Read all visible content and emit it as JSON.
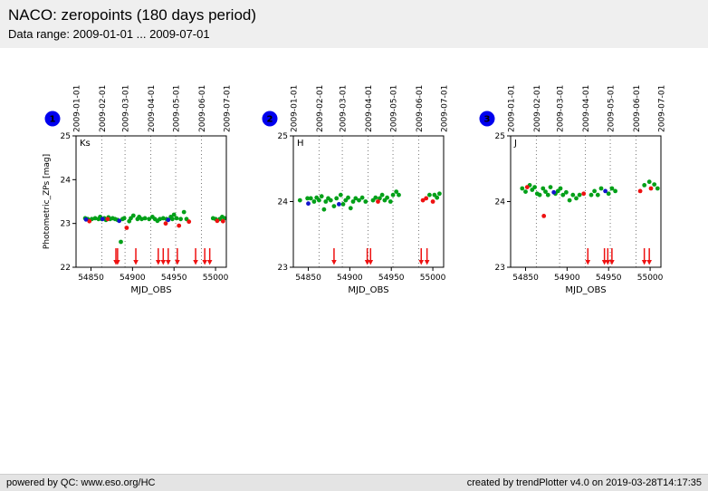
{
  "header": {
    "title": "NACO: zeropoints (180 days period)",
    "subtitle": "Data range: 2009-01-01 ... 2009-07-01"
  },
  "footer": {
    "left": "powered by QC: www.eso.org/HC",
    "right": "created by trendPlotter v4.0 on 2019-03-28T14:17:35"
  },
  "colors": {
    "green": "#00a018",
    "red": "#ee1111",
    "blue": "#1414cc",
    "badge": "#0000ee",
    "grid": "#777777",
    "axis": "#000000"
  },
  "chart_data": [
    {
      "type": "scatter",
      "badge": "1",
      "label": "Ks",
      "xlabel": "MJD_OBS",
      "ylabel": "Photometric_ZPs [mag]",
      "xlim": [
        54832,
        55013
      ],
      "ylim": [
        22,
        25
      ],
      "xticks": [
        54850,
        54900,
        54950,
        55000
      ],
      "yticks": [
        22,
        23,
        24,
        25
      ],
      "months": {
        "labels": [
          "2009-01-01",
          "2009-02-01",
          "2009-03-01",
          "2009-04-01",
          "2009-05-01",
          "2009-06-01",
          "2009-07-01"
        ],
        "mjd": [
          54832,
          54863,
          54891,
          54922,
          54952,
          54983,
          55013
        ]
      },
      "series": [
        {
          "name": "nominal",
          "color": "green",
          "points": [
            [
              54843,
              23.12
            ],
            [
              54846,
              23.1
            ],
            [
              54851,
              23.1
            ],
            [
              54855,
              23.12
            ],
            [
              54859,
              23.1
            ],
            [
              54861,
              23.15
            ],
            [
              54863,
              23.1
            ],
            [
              54866,
              23.12
            ],
            [
              54868,
              23.08
            ],
            [
              54871,
              23.14
            ],
            [
              54873,
              23.1
            ],
            [
              54876,
              23.12
            ],
            [
              54879,
              23.1
            ],
            [
              54882,
              23.08
            ],
            [
              54886,
              22.58
            ],
            [
              54888,
              23.1
            ],
            [
              54890,
              23.12
            ],
            [
              54896,
              23.05
            ],
            [
              54898,
              23.12
            ],
            [
              54901,
              23.18
            ],
            [
              54906,
              23.1
            ],
            [
              54908,
              23.15
            ],
            [
              54911,
              23.1
            ],
            [
              54915,
              23.12
            ],
            [
              54920,
              23.1
            ],
            [
              54924,
              23.15
            ],
            [
              54927,
              23.1
            ],
            [
              54930,
              23.06
            ],
            [
              54933,
              23.1
            ],
            [
              54937,
              23.12
            ],
            [
              54941,
              23.1
            ],
            [
              54946,
              23.15
            ],
            [
              54948,
              23.1
            ],
            [
              54950,
              23.2
            ],
            [
              54953,
              23.12
            ],
            [
              54958,
              23.1
            ],
            [
              54962,
              23.26
            ],
            [
              54965,
              23.1
            ],
            [
              54997,
              23.12
            ],
            [
              55000,
              23.1
            ],
            [
              55005,
              23.1
            ],
            [
              55008,
              23.15
            ],
            [
              55011,
              23.12
            ]
          ]
        },
        {
          "name": "flagged",
          "color": "red",
          "points": [
            [
              54848,
              23.05
            ],
            [
              54870,
              23.1
            ],
            [
              54893,
              22.9
            ],
            [
              54940,
              23.0
            ],
            [
              54956,
              22.95
            ],
            [
              54968,
              23.04
            ],
            [
              55002,
              23.06
            ],
            [
              55009,
              23.05
            ]
          ]
        },
        {
          "name": "reference",
          "color": "blue",
          "points": [
            [
              54844,
              23.09
            ],
            [
              54864,
              23.1
            ],
            [
              54884,
              23.06
            ],
            [
              54943,
              23.08
            ]
          ]
        }
      ],
      "outlier_arrows": [
        54880,
        54882,
        54904,
        54931,
        54937,
        54943,
        54954,
        54976,
        54987,
        54993
      ]
    },
    {
      "type": "scatter",
      "badge": "2",
      "label": "H",
      "xlabel": "MJD_OBS",
      "ylabel": "",
      "xlim": [
        54832,
        55013
      ],
      "ylim": [
        23,
        25
      ],
      "xticks": [
        54850,
        54900,
        54950,
        55000
      ],
      "yticks": [
        23,
        24,
        25
      ],
      "months": {
        "labels": [
          "2009-01-01",
          "2009-02-01",
          "2009-03-01",
          "2009-04-01",
          "2009-05-01",
          "2009-06-01",
          "2009-07-01"
        ],
        "mjd": [
          54832,
          54863,
          54891,
          54922,
          54952,
          54983,
          55013
        ]
      },
      "series": [
        {
          "name": "nominal",
          "color": "green",
          "points": [
            [
              54840,
              24.02
            ],
            [
              54849,
              24.05
            ],
            [
              54853,
              24.05
            ],
            [
              54857,
              24.0
            ],
            [
              54860,
              24.06
            ],
            [
              54863,
              24.02
            ],
            [
              54866,
              24.08
            ],
            [
              54869,
              23.88
            ],
            [
              54871,
              24.0
            ],
            [
              54874,
              24.05
            ],
            [
              54877,
              24.02
            ],
            [
              54881,
              23.93
            ],
            [
              54884,
              24.05
            ],
            [
              54889,
              24.1
            ],
            [
              54892,
              23.96
            ],
            [
              54895,
              24.02
            ],
            [
              54898,
              24.06
            ],
            [
              54901,
              23.9
            ],
            [
              54904,
              24.0
            ],
            [
              54907,
              24.05
            ],
            [
              54911,
              24.02
            ],
            [
              54915,
              24.06
            ],
            [
              54919,
              24.0
            ],
            [
              54928,
              24.02
            ],
            [
              54931,
              24.06
            ],
            [
              54936,
              24.05
            ],
            [
              54939,
              24.1
            ],
            [
              54942,
              24.02
            ],
            [
              54945,
              24.06
            ],
            [
              54949,
              24.0
            ],
            [
              54952,
              24.1
            ],
            [
              54956,
              24.15
            ],
            [
              54959,
              24.1
            ],
            [
              54996,
              24.1
            ],
            [
              55002,
              24.1
            ],
            [
              55005,
              24.06
            ],
            [
              55008,
              24.12
            ]
          ]
        },
        {
          "name": "flagged",
          "color": "red",
          "points": [
            [
              54934,
              24.0
            ],
            [
              54988,
              24.02
            ],
            [
              54992,
              24.05
            ],
            [
              55000,
              24.0
            ]
          ]
        },
        {
          "name": "reference",
          "color": "blue",
          "points": [
            [
              54850,
              23.97
            ],
            [
              54887,
              23.96
            ]
          ]
        }
      ],
      "outlier_arrows": [
        54881,
        54921,
        54925,
        54986,
        54993
      ]
    },
    {
      "type": "scatter",
      "badge": "3",
      "label": "J",
      "xlabel": "MJD_OBS",
      "ylabel": "",
      "xlim": [
        54832,
        55013
      ],
      "ylim": [
        23,
        25
      ],
      "xticks": [
        54850,
        54900,
        54950,
        55000
      ],
      "yticks": [
        23,
        24,
        25
      ],
      "months": {
        "labels": [
          "2009-01-01",
          "2009-02-01",
          "2009-03-01",
          "2009-04-01",
          "2009-05-01",
          "2009-06-01",
          "2009-07-01"
        ],
        "mjd": [
          54832,
          54863,
          54891,
          54922,
          54952,
          54983,
          55013
        ]
      },
      "series": [
        {
          "name": "nominal",
          "color": "green",
          "points": [
            [
              54846,
              24.2
            ],
            [
              54850,
              24.15
            ],
            [
              54855,
              24.25
            ],
            [
              54858,
              24.18
            ],
            [
              54861,
              24.22
            ],
            [
              54864,
              24.12
            ],
            [
              54867,
              24.1
            ],
            [
              54871,
              24.2
            ],
            [
              54874,
              24.15
            ],
            [
              54877,
              24.1
            ],
            [
              54880,
              24.22
            ],
            [
              54886,
              24.12
            ],
            [
              54889,
              24.16
            ],
            [
              54892,
              24.2
            ],
            [
              54895,
              24.1
            ],
            [
              54899,
              24.14
            ],
            [
              54903,
              24.02
            ],
            [
              54907,
              24.1
            ],
            [
              54911,
              24.05
            ],
            [
              54915,
              24.1
            ],
            [
              54929,
              24.1
            ],
            [
              54933,
              24.16
            ],
            [
              54937,
              24.1
            ],
            [
              54941,
              24.2
            ],
            [
              54950,
              24.12
            ],
            [
              54954,
              24.2
            ],
            [
              54958,
              24.16
            ],
            [
              54993,
              24.25
            ],
            [
              54999,
              24.3
            ],
            [
              55005,
              24.26
            ],
            [
              55009,
              24.2
            ]
          ]
        },
        {
          "name": "flagged",
          "color": "red",
          "points": [
            [
              54852,
              24.22
            ],
            [
              54872,
              23.78
            ],
            [
              54920,
              24.12
            ],
            [
              54988,
              24.16
            ],
            [
              55001,
              24.2
            ]
          ]
        },
        {
          "name": "reference",
          "color": "blue",
          "points": [
            [
              54884,
              24.14
            ],
            [
              54946,
              24.16
            ]
          ]
        }
      ],
      "outlier_arrows": [
        54925,
        54945,
        54949,
        54954,
        54993,
        54999
      ]
    }
  ]
}
